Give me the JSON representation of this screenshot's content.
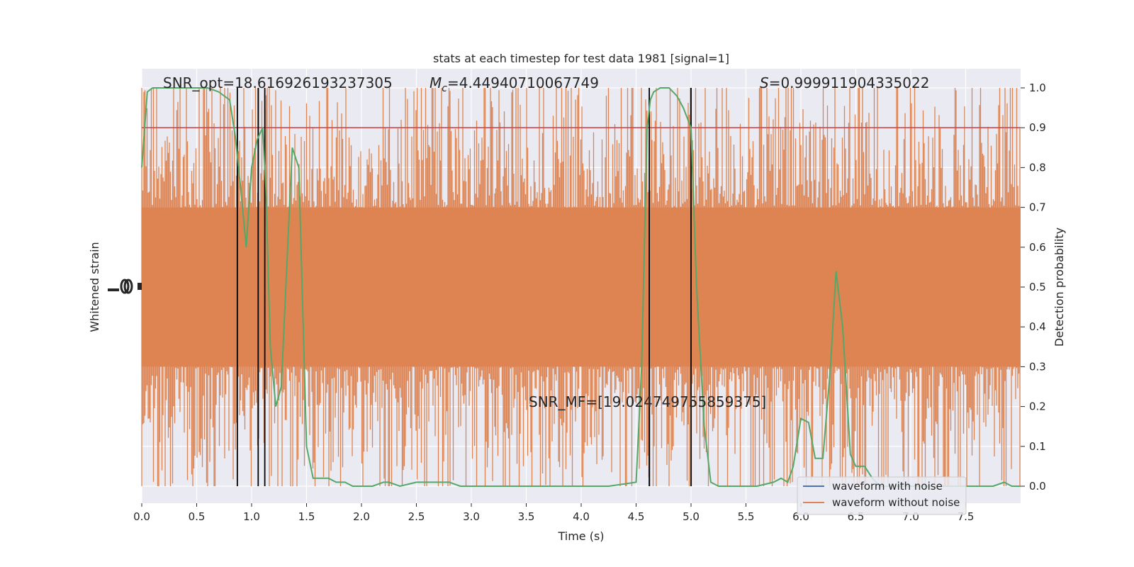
{
  "chart_data": {
    "type": "line",
    "title": "stats at each timestep for test data 1981 [signal=1]",
    "xlabel": "Time (s)",
    "ylabel_left": "Whitened strain",
    "ylabel_right": "Detection probability",
    "xlim": [
      0,
      8
    ],
    "ylim_right": [
      -0.05,
      1.05
    ],
    "x_ticks": [
      "0.0",
      "0.5",
      "1.0",
      "1.5",
      "2.0",
      "2.5",
      "3.0",
      "3.5",
      "4.0",
      "4.5",
      "5.0",
      "5.5",
      "6.0",
      "6.5",
      "7.0",
      "7.5"
    ],
    "y_ticks_right": [
      "0.0",
      "0.1",
      "0.2",
      "0.3",
      "0.4",
      "0.5",
      "0.6",
      "0.7",
      "0.8",
      "0.9",
      "1.0"
    ],
    "grid": true,
    "legend_position": "lower-right",
    "threshold": 0.9,
    "vertical_lines": [
      0.87,
      1.06,
      1.12,
      4.62,
      5.0
    ],
    "annotations": {
      "snr_opt": "SNR_opt=18.616926193237305",
      "mc_symbol": "M",
      "mc_sub": "c",
      "mc_value": "=4.44940710067749",
      "s_symbol": "S",
      "s_value": "=0.999911904335022",
      "snr_mf": "SNR_MF=[19.024749755859375]"
    },
    "series": [
      {
        "name": "waveform with noise",
        "color": "#4c72b0"
      },
      {
        "name": "waveform without noise",
        "color": "#dd8452"
      }
    ],
    "strain_band": {
      "center": 0.5,
      "core_half_width": 0.2,
      "spike_half_width": 0.3
    },
    "probability_series": {
      "color": "#55a868",
      "x": [
        0.0,
        0.05,
        0.1,
        0.15,
        0.2,
        0.3,
        0.4,
        0.5,
        0.6,
        0.7,
        0.8,
        0.85,
        0.9,
        0.95,
        1.0,
        1.05,
        1.1,
        1.13,
        1.17,
        1.22,
        1.27,
        1.32,
        1.37,
        1.43,
        1.5,
        1.56,
        1.63,
        1.7,
        1.77,
        1.85,
        1.92,
        2.0,
        2.1,
        2.2,
        2.25,
        2.35,
        2.5,
        2.6,
        2.7,
        2.8,
        2.9,
        3.0,
        3.25,
        3.5,
        3.75,
        4.0,
        4.25,
        4.5,
        4.55,
        4.6,
        4.63,
        4.66,
        4.72,
        4.8,
        4.87,
        4.93,
        5.0,
        5.05,
        5.12,
        5.18,
        5.25,
        5.4,
        5.6,
        5.75,
        5.82,
        5.88,
        5.93,
        6.0,
        6.07,
        6.13,
        6.2,
        6.27,
        6.32,
        6.38,
        6.45,
        6.5,
        6.58,
        6.65,
        6.72,
        6.8,
        6.9,
        7.0,
        7.25,
        7.5,
        7.75,
        7.85,
        7.92,
        8.0
      ],
      "y": [
        0.8,
        0.99,
        1.0,
        1.0,
        1.0,
        1.0,
        1.0,
        1.0,
        1.0,
        0.99,
        0.97,
        0.88,
        0.75,
        0.6,
        0.8,
        0.87,
        0.9,
        0.75,
        0.35,
        0.2,
        0.25,
        0.55,
        0.85,
        0.8,
        0.1,
        0.02,
        0.02,
        0.02,
        0.01,
        0.01,
        0.0,
        0.0,
        0.0,
        0.01,
        0.01,
        0.0,
        0.01,
        0.01,
        0.01,
        0.01,
        0.0,
        0.0,
        0.0,
        0.0,
        0.0,
        0.0,
        0.0,
        0.01,
        0.3,
        0.9,
        0.97,
        0.99,
        1.0,
        1.0,
        0.98,
        0.95,
        0.9,
        0.5,
        0.15,
        0.01,
        0.0,
        0.0,
        0.0,
        0.01,
        0.02,
        0.01,
        0.05,
        0.17,
        0.16,
        0.07,
        0.07,
        0.3,
        0.54,
        0.4,
        0.08,
        0.05,
        0.05,
        0.02,
        0.0,
        0.0,
        0.0,
        0.0,
        0.0,
        0.0,
        0.0,
        0.01,
        0.0,
        0.0
      ]
    }
  }
}
